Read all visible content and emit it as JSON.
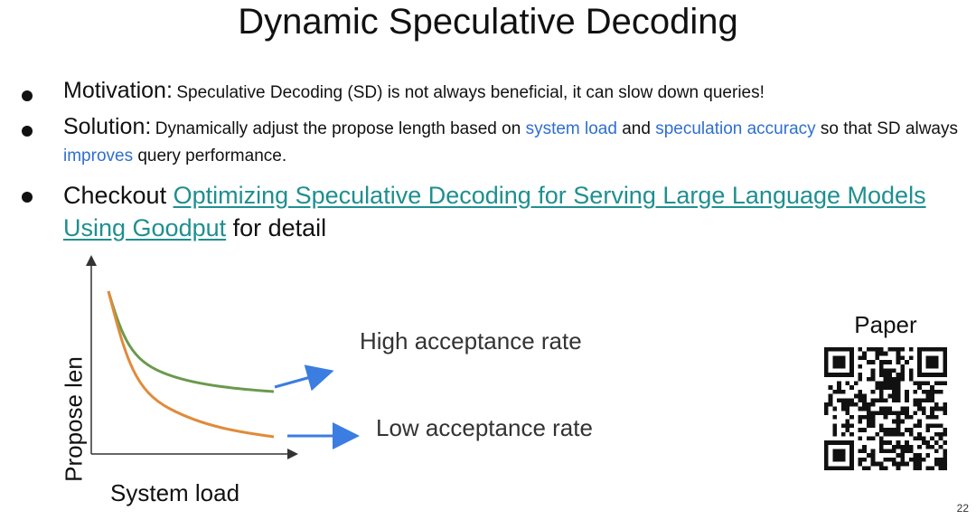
{
  "slide": {
    "title": "Dynamic Speculative Decoding",
    "page_number": "22",
    "bullets": {
      "motivation_label": "Motivation:",
      "motivation_text": "Speculative Decoding (SD) is not always beneficial, it can slow down queries!",
      "solution_label": "Solution:",
      "solution_text_1": "Dynamically adjust the propose length based on ",
      "solution_highlight_1": "system load",
      "solution_text_2": " and ",
      "solution_highlight_2": "speculation accuracy",
      "solution_text_3": " so that SD always ",
      "solution_highlight_3": "improves",
      "solution_text_4": " query performance.",
      "checkout_label": "Checkout ",
      "checkout_link": "Optimizing Speculative Decoding for Serving Large Language Models Using Goodput",
      "checkout_suffix": " for detail"
    },
    "qr_label": "Paper",
    "colors": {
      "highlight": "#2f6fce",
      "link": "#1f8f8f",
      "high_curve": "#6a9a4c",
      "low_curve": "#e08b3a",
      "arrow": "#3b7de0"
    }
  },
  "chart_data": {
    "type": "line",
    "xlabel": "System load",
    "ylabel": "Propose len",
    "series": [
      {
        "name": "High acceptance rate",
        "shape": "decaying to a higher plateau"
      },
      {
        "name": "Low acceptance rate",
        "shape": "decaying to a lower plateau"
      }
    ],
    "annotations": [
      "High acceptance rate",
      "Low acceptance rate"
    ],
    "grid": false
  }
}
